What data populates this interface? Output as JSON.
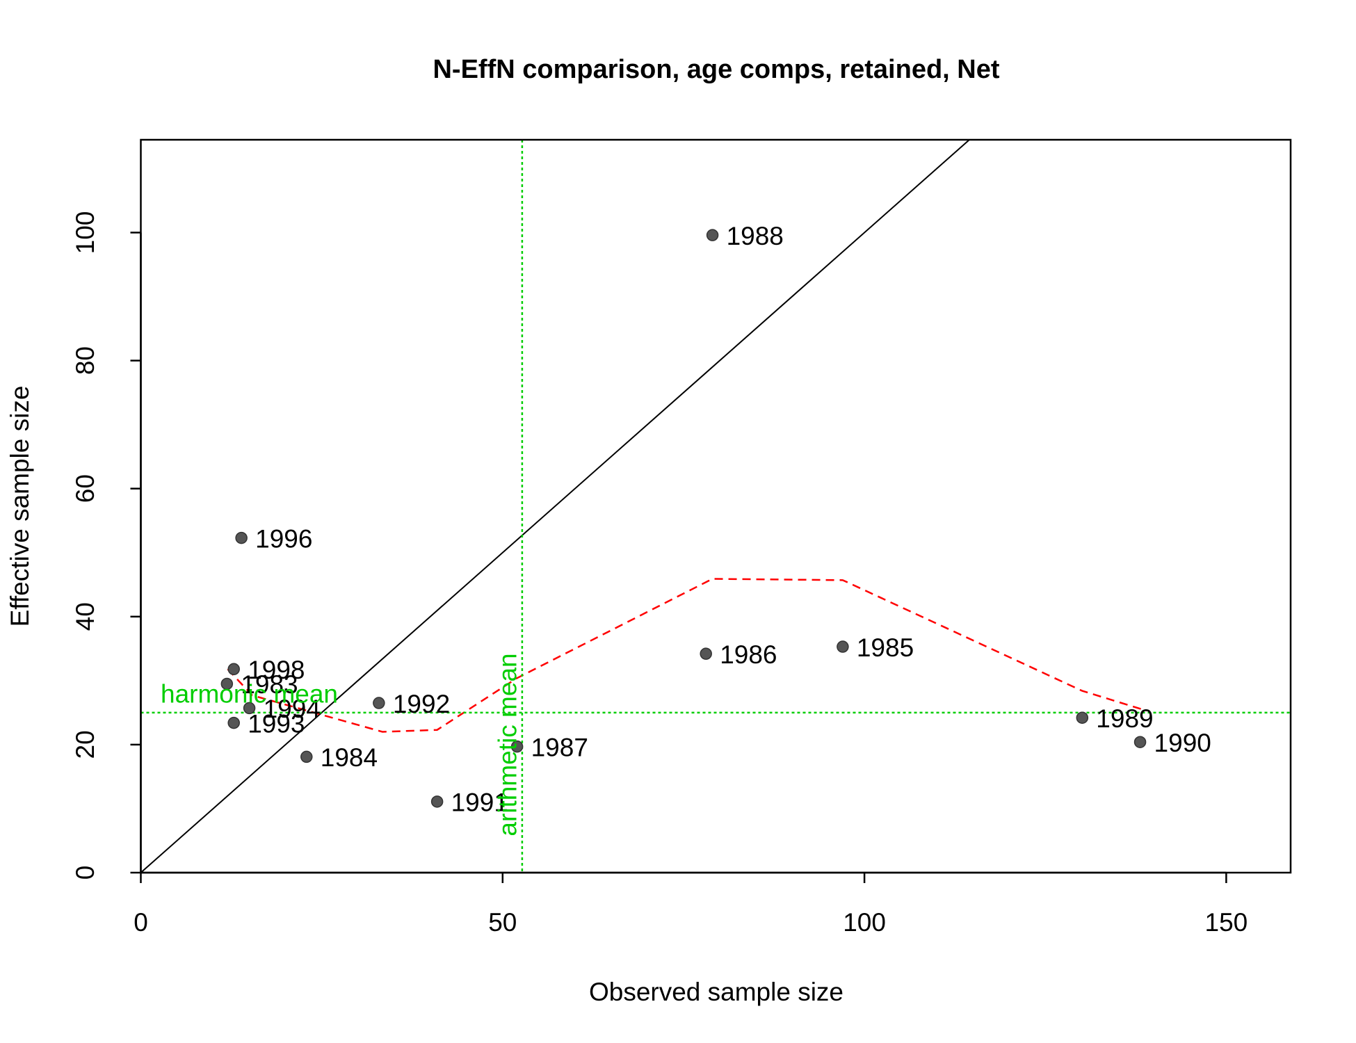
{
  "chart_data": {
    "type": "scatter",
    "title": "N-EffN comparison, age comps, retained, Net",
    "x_label": "Observed sample size",
    "y_label": "Effective sample size",
    "xlim": [
      0,
      158.9
    ],
    "ylim": [
      0,
      114.5
    ],
    "xticks": [
      0,
      50,
      100,
      150
    ],
    "yticks": [
      0,
      20,
      40,
      60,
      80,
      100
    ],
    "color": "#555555",
    "identity_line": true,
    "x": [
      79.0,
      13.9,
      12.85,
      11.9,
      15.0,
      12.85,
      22.9,
      32.9,
      40.95,
      52.0,
      78.1,
      97.0,
      130.1,
      138.1
    ],
    "values": [
      99.6,
      52.3,
      31.8,
      29.5,
      25.7,
      23.4,
      18.1,
      26.5,
      11.1,
      19.7,
      34.2,
      35.3,
      24.2,
      20.4
    ],
    "labels": [
      "1988",
      "1996",
      "1998",
      "1983",
      "1994",
      "1993",
      "1984",
      "1992",
      "1991",
      "1987",
      "1986",
      "1985",
      "1989",
      "1990"
    ],
    "smoother": {
      "color": "#ff0000",
      "x": [
        12.0,
        15.4,
        24.9,
        33.4,
        40.95,
        52.0,
        79.0,
        97.0,
        130.1,
        139.0
      ],
      "values": [
        31.8,
        27.7,
        24.7,
        22.0,
        22.3,
        30.4,
        45.9,
        45.7,
        28.4,
        25.3
      ]
    },
    "harmonic_mean": {
      "label": "harmonic mean",
      "value": 25,
      "color": "#00cd00"
    },
    "arithmetic_mean": {
      "label": "arithmetic mean",
      "value": 52.7,
      "color": "#00cd00"
    }
  }
}
